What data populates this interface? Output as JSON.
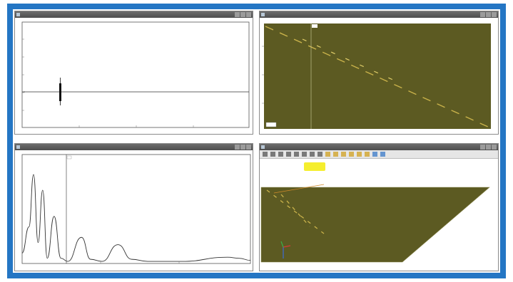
{
  "colors": {
    "frame": "#2476c4",
    "plot_background": "#5c5a22",
    "trace": "#c9b24a",
    "highlight": "#f5ee2e"
  },
  "panels": {
    "top_left": {
      "title": "",
      "plot_label": "",
      "cursor_value": ""
    },
    "top_right": {
      "title": "",
      "plot_label": "",
      "cursor_value": ""
    },
    "bottom_left": {
      "title": "",
      "plot_label": "",
      "cursor_value": ""
    },
    "bottom_right": {
      "title": ""
    }
  },
  "toolbar": {
    "icons": [
      "pointer-icon",
      "zoom-box-icon",
      "select-icon",
      "rotate-icon",
      "pan-icon",
      "zoom-in-icon",
      "zoom-out-icon",
      "fit-icon",
      "grid-icon",
      "axes-icon",
      "home-icon",
      "color-icon",
      "light-icon",
      "camera-icon",
      "export-icon",
      "settings-icon"
    ]
  },
  "chart_data": [
    {
      "type": "line",
      "description_key": "top_left_waveform",
      "x": [
        0,
        0.1,
        0.17,
        0.175,
        0.18,
        0.185,
        0.19,
        0.2,
        1
      ],
      "y": [
        0,
        0,
        0,
        1,
        -1,
        0.8,
        -0.6,
        0,
        0
      ],
      "xlim": [
        0,
        1
      ],
      "ylim": [
        -4,
        4
      ]
    },
    {
      "type": "line",
      "description_key": "bottom_left_spectrum",
      "x": [
        0,
        0.03,
        0.05,
        0.07,
        0.09,
        0.11,
        0.14,
        0.17,
        0.2,
        0.26,
        0.3,
        0.35,
        0.42,
        0.48,
        0.55,
        0.7,
        0.9,
        0.95,
        1
      ],
      "y": [
        0.1,
        0.35,
        0.85,
        0.2,
        0.7,
        0.05,
        0.45,
        0.05,
        0.02,
        0.25,
        0.04,
        0.02,
        0.18,
        0.04,
        0.02,
        0.02,
        0.06,
        0.05,
        0.03
      ],
      "xlim": [
        0,
        1
      ],
      "ylim": [
        0,
        1
      ]
    }
  ]
}
